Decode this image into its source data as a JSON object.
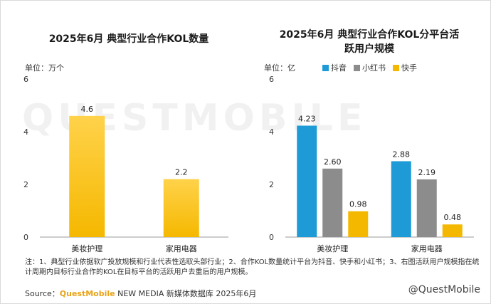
{
  "watermark_big": "QUESTMOBILE",
  "left_chart": {
    "title": "2025年6月 典型行业合作KOL数量",
    "unit_label": "单位：万个"
  },
  "right_chart": {
    "title_line1": "2025年6月 典型行业合作KOL分平台活",
    "title_line2": "跃用户规模",
    "unit_label": "单位：亿"
  },
  "note": "注：1、典型行业依据软广投放规模和行业代表性选取头部行业；2、合作KOL数量统计平台为抖音、快手和小红书；3、右图活跃用户规模指在统计周期内目标行业合作的KOL在目标平台的活跃用户去重后的用户规模。",
  "source": {
    "prefix": "Source：",
    "brand": "QuestMobile",
    "rest": " NEW MEDIA 新媒体数据库 2025年6月"
  },
  "corner_watermark": "@QuestMobile",
  "colors": {
    "gold": "#F5B800",
    "gold_light": "#FFD24A",
    "blue": "#1E9BD7",
    "grey": "#8C8C8C",
    "axis": "#999999"
  },
  "chart_data": [
    {
      "type": "bar",
      "title": "2025年6月 典型行业合作KOL数量",
      "ylabel": "单位：万个",
      "categories": [
        "美妆护理",
        "家用电器"
      ],
      "values": [
        4.6,
        2.2
      ],
      "value_labels": [
        "4.6",
        "2.2"
      ],
      "ylim": [
        0,
        6
      ],
      "yticks": [
        0,
        2,
        4,
        6
      ],
      "grid": false
    },
    {
      "type": "bar",
      "title": "2025年6月 典型行业合作KOL分平台活跃用户规模",
      "ylabel": "单位：亿",
      "categories": [
        "美妆护理",
        "家用电器"
      ],
      "series": [
        {
          "name": "抖音",
          "color": "#1E9BD7",
          "values": [
            4.23,
            2.88
          ],
          "labels": [
            "4.23",
            "2.88"
          ]
        },
        {
          "name": "小红书",
          "color": "#8C8C8C",
          "values": [
            2.6,
            2.19
          ],
          "labels": [
            "2.60",
            "2.19"
          ]
        },
        {
          "name": "快手",
          "color": "#F5B800",
          "values": [
            0.98,
            0.48
          ],
          "labels": [
            "0.98",
            "0.48"
          ]
        }
      ],
      "ylim": [
        0,
        6
      ],
      "yticks": [
        0,
        2,
        4,
        6
      ],
      "legend": "top",
      "grid": false
    }
  ]
}
